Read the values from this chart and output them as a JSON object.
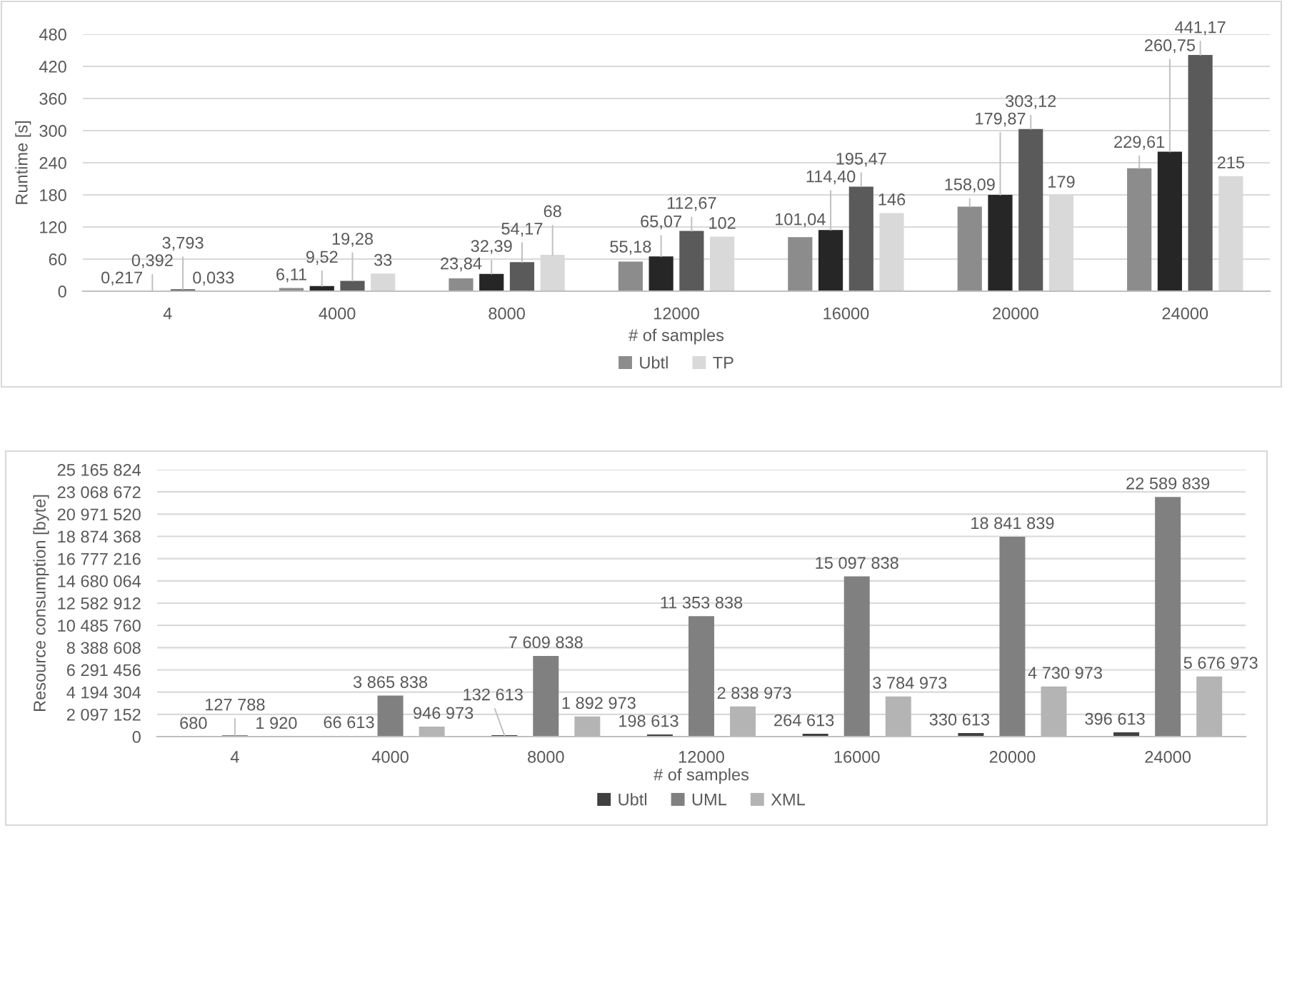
{
  "chart_data": [
    {
      "type": "bar",
      "xlabel": "# of samples",
      "ylabel": "Runtime [s]",
      "categories": [
        "4",
        "4000",
        "8000",
        "12000",
        "16000",
        "20000",
        "24000"
      ],
      "series": [
        {
          "name": "Ubtl",
          "color": "#8c8c8c",
          "values": [
            0.217,
            6.11,
            23.84,
            55.18,
            101.04,
            158.09,
            229.61
          ],
          "value_labels": [
            "0,217",
            "6,11",
            "23,84",
            "55,18",
            "101,04",
            "158,09",
            "229,61"
          ]
        },
        {
          "color": "#262626",
          "values": [
            0.392,
            9.52,
            32.39,
            65.07,
            114.4,
            179.87,
            260.75
          ],
          "value_labels": [
            "0,392",
            "9,52",
            "32,39",
            "65,07",
            "114,40",
            "179,87",
            "260,75"
          ]
        },
        {
          "color": "#5a5a5a",
          "values": [
            3.793,
            19.28,
            54.17,
            112.67,
            195.47,
            303.12,
            441.17
          ],
          "value_labels": [
            "3,793",
            "19,28",
            "54,17",
            "112,67",
            "195,47",
            "303,12",
            "441,17"
          ]
        },
        {
          "name": "TP",
          "color": "#d9d9d9",
          "values": [
            0.033,
            33,
            68,
            102,
            146,
            179,
            215
          ],
          "value_labels": [
            "0,033",
            "33",
            "68",
            "102",
            "146",
            "179",
            "215"
          ]
        }
      ],
      "ylim": [
        0,
        480
      ],
      "yticks": [
        0,
        60,
        120,
        180,
        240,
        300,
        360,
        420,
        480
      ],
      "grid": "y",
      "legend": "bottom"
    },
    {
      "type": "bar",
      "xlabel": "# of samples",
      "ylabel": "Resource consumption [byte]",
      "categories": [
        "4",
        "4000",
        "8000",
        "12000",
        "16000",
        "20000",
        "24000"
      ],
      "series": [
        {
          "name": "Ubtl",
          "color": "#404040",
          "values": [
            680,
            66613,
            132613,
            198613,
            264613,
            330613,
            396613
          ],
          "value_labels": [
            "680",
            "66 613",
            "132 613",
            "198 613",
            "264 613",
            "330 613",
            "396 613"
          ]
        },
        {
          "name": "UML",
          "color": "#808080",
          "values": [
            127788,
            3865838,
            7609838,
            11353838,
            15097838,
            18841839,
            22589839
          ],
          "value_labels": [
            "127 788",
            "3 865 838",
            "7 609 838",
            "11 353 838",
            "15 097 838",
            "18 841 839",
            "22 589 839"
          ]
        },
        {
          "name": "XML",
          "color": "#b4b4b4",
          "values": [
            1920,
            946973,
            1892973,
            2838973,
            3784973,
            4730973,
            5676973
          ],
          "value_labels": [
            "1 920",
            "946 973",
            "1 892 973",
            "2 838 973",
            "3 784 973",
            "4 730 973",
            "5 676 973"
          ]
        }
      ],
      "ylim": [
        0,
        25165824
      ],
      "yticks": [
        0,
        {
          "value": 2097152,
          "label": "2 097 152"
        },
        {
          "value": 4194304,
          "label": "4 194 304"
        },
        {
          "value": 6291456,
          "label": "6 291 456"
        },
        {
          "value": 8388608,
          "label": "8 388 608"
        },
        {
          "value": 10485760,
          "label": "10 485 760"
        },
        {
          "value": 12582912,
          "label": "12 582 912"
        },
        {
          "value": 14680064,
          "label": "14 680 064"
        },
        {
          "value": 16777216,
          "label": "16 777 216"
        },
        {
          "value": 18874368,
          "label": "18 874 368"
        },
        {
          "value": 20971520,
          "label": "20 971 520"
        },
        {
          "value": 23068672,
          "label": "23 068 672"
        },
        {
          "value": 25165824,
          "label": "25 165 824"
        }
      ],
      "grid": "y",
      "legend": "bottom"
    }
  ]
}
